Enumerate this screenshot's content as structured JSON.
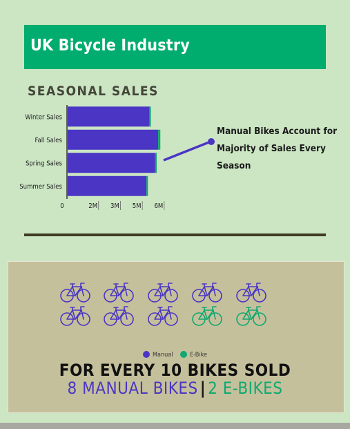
{
  "header": {
    "title": "UK Bicycle Industry"
  },
  "section_title": "SEASONAL SALES",
  "callout": {
    "line1": "Manual Bikes Account for",
    "line2": "Majority of Sales Every Season"
  },
  "colors": {
    "manual": "#4a35c4",
    "ebike": "#10a870",
    "header": "#00ad6e"
  },
  "chart_data": {
    "type": "bar",
    "orientation": "horizontal",
    "stacked": true,
    "categories": [
      "Winter Sales",
      "Fall Sales",
      "Spring Sales",
      "Summer Sales"
    ],
    "series": [
      {
        "name": "Manual",
        "values": [
          5.6,
          6.2,
          6.0,
          5.4
        ]
      },
      {
        "name": "E-Bike",
        "values": [
          0.1,
          0.15,
          0.1,
          0.1
        ]
      }
    ],
    "xticks": [
      "0",
      "2M",
      "3M",
      "5M",
      "6M"
    ],
    "tick_values": [
      0,
      1.5,
      3,
      4.5,
      6
    ],
    "xlim": [
      0,
      7
    ]
  },
  "icon_grid": {
    "icon": "bicycle-icon",
    "rows": [
      [
        "manual",
        "manual",
        "manual",
        "manual",
        "manual"
      ],
      [
        "manual",
        "manual",
        "manual",
        "ebike",
        "ebike"
      ]
    ]
  },
  "legend": {
    "manual": "Manual",
    "ebike": "E-Bike"
  },
  "summary": {
    "line1": "FOR EVERY 10 BIKES SOLD",
    "manual_text": "8 MANUAL BIKES",
    "separator": "|",
    "ebike_text": "2 E-BIKES"
  }
}
